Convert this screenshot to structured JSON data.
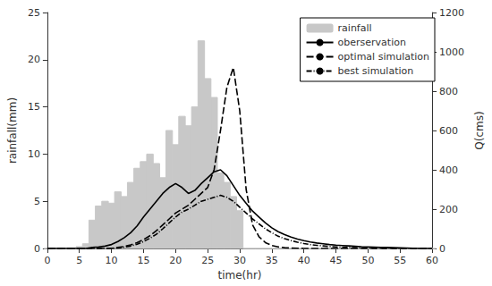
{
  "chart_data": {
    "type": "combo",
    "xlabel": "time(hr)",
    "ylabel": "rainfall(mm)",
    "y2label": "Q(cms)",
    "x": [
      0,
      1,
      2,
      3,
      4,
      5,
      6,
      7,
      8,
      9,
      10,
      11,
      12,
      13,
      14,
      15,
      16,
      17,
      18,
      19,
      20,
      21,
      22,
      23,
      24,
      25,
      26,
      27,
      28,
      29,
      30,
      31,
      32,
      33,
      34,
      35,
      36,
      37,
      38,
      39,
      40,
      41,
      42,
      43,
      44,
      45,
      46,
      47,
      48,
      49,
      50,
      51,
      52,
      53,
      54,
      55,
      56,
      57,
      58,
      59,
      60
    ],
    "xlim": [
      0,
      60
    ],
    "xticks": [
      0,
      5,
      10,
      15,
      20,
      25,
      30,
      35,
      40,
      45,
      50,
      55,
      60
    ],
    "ylim": [
      0,
      25
    ],
    "yticks": [
      0,
      5,
      10,
      15,
      20,
      25
    ],
    "y2lim": [
      0,
      1200
    ],
    "y2ticks": [
      0,
      200,
      400,
      600,
      800,
      1000,
      1200
    ],
    "grid": false,
    "legend": "upper right",
    "series": [
      {
        "name": "rainfall",
        "type": "bar",
        "color": "#c8c8c8",
        "values": [
          0,
          0,
          0,
          0,
          0,
          0.2,
          0.5,
          3.0,
          4.5,
          5.0,
          4.8,
          6.0,
          5.5,
          7.0,
          8.5,
          9.2,
          10.0,
          9.0,
          7.5,
          12.5,
          11.0,
          14.0,
          13.0,
          15.0,
          22.0,
          18.0,
          16.0,
          8.0,
          7.0,
          5.5,
          4.0,
          0,
          0,
          0,
          0,
          0,
          0,
          0,
          0,
          0,
          0,
          0,
          0,
          0,
          0,
          0,
          0,
          0,
          0,
          0,
          0,
          0,
          0,
          0,
          0,
          0,
          0,
          0,
          0,
          0,
          0
        ]
      },
      {
        "name": "oberservation",
        "type": "line",
        "axis": "y2",
        "color": "#000000",
        "line_style": "solid",
        "values": [
          0,
          0,
          0,
          0,
          0,
          0,
          0,
          5,
          8,
          12,
          20,
          35,
          55,
          80,
          115,
          160,
          200,
          240,
          280,
          310,
          330,
          310,
          280,
          295,
          330,
          360,
          390,
          400,
          370,
          320,
          270,
          230,
          190,
          160,
          130,
          105,
          85,
          70,
          58,
          48,
          40,
          33,
          28,
          24,
          20,
          17,
          15,
          13,
          11,
          9,
          8,
          7,
          6,
          5,
          4,
          3,
          2,
          1,
          0,
          0,
          0
        ]
      },
      {
        "name": "optimal simulation",
        "type": "line",
        "axis": "y2",
        "color": "#000000",
        "line_style": "dashed",
        "values": [
          0,
          0,
          0,
          0,
          0,
          0,
          0,
          0,
          0,
          0,
          0,
          5,
          10,
          18,
          30,
          45,
          65,
          90,
          120,
          150,
          180,
          200,
          220,
          250,
          280,
          310,
          400,
          600,
          820,
          920,
          700,
          300,
          120,
          60,
          30,
          15,
          8,
          4,
          2,
          1,
          0,
          0,
          0,
          0,
          0,
          0,
          0,
          0,
          0,
          0,
          0,
          0,
          0,
          0,
          0,
          0,
          0,
          0,
          0,
          0,
          0
        ]
      },
      {
        "name": "best simulation",
        "type": "line",
        "axis": "y2",
        "color": "#000000",
        "line_style": "dashdot",
        "values": [
          0,
          0,
          0,
          0,
          0,
          0,
          0,
          0,
          0,
          0,
          0,
          3,
          7,
          12,
          22,
          35,
          52,
          72,
          100,
          130,
          160,
          185,
          200,
          220,
          240,
          250,
          260,
          270,
          260,
          240,
          210,
          180,
          150,
          125,
          100,
          80,
          62,
          50,
          40,
          32,
          25,
          20,
          16,
          13,
          10,
          8,
          6,
          5,
          4,
          3,
          2,
          1,
          0,
          0,
          0,
          0,
          0,
          0,
          0,
          0,
          0
        ]
      }
    ]
  }
}
